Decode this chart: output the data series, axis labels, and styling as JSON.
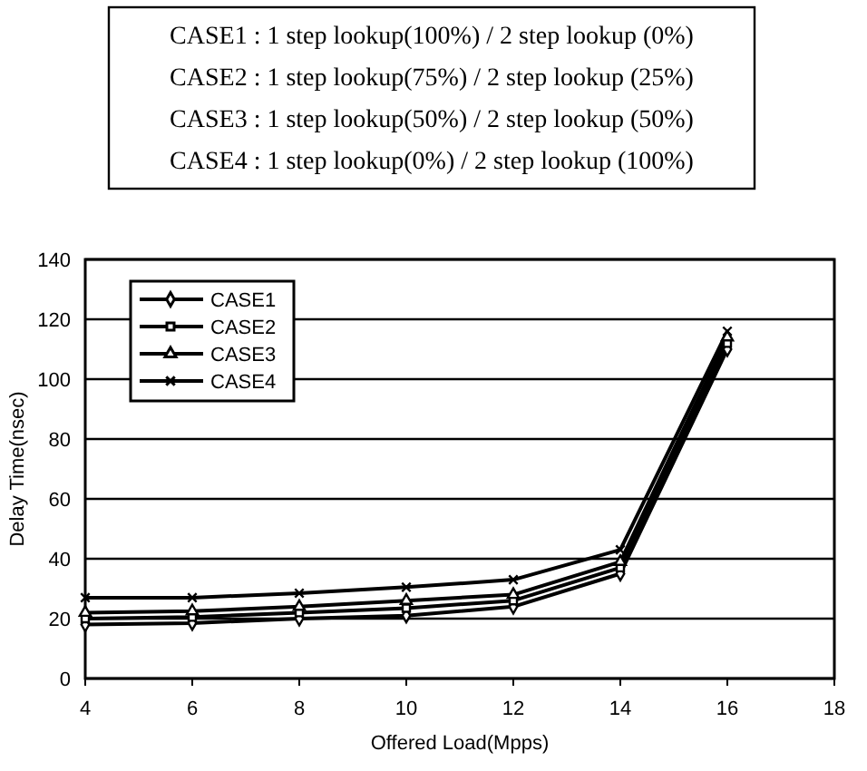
{
  "chart_data": {
    "type": "line",
    "xlabel": "Offered Load(Mpps)",
    "ylabel": "Delay Time(nsec)",
    "annotations": [
      "CASE1 : 1 step lookup(100%) / 2 step lookup (0%)",
      "CASE2 : 1 step lookup(75%) / 2 step lookup (25%)",
      "CASE3 : 1 step lookup(50%) / 2 step lookup (50%)",
      "CASE4 : 1 step lookup(0%) / 2 step lookup (100%)"
    ],
    "x": [
      4,
      6,
      8,
      10,
      12,
      14,
      16
    ],
    "series": [
      {
        "name": "CASE1",
        "color": "#000000",
        "marker": "diamond",
        "values": [
          18,
          18.5,
          20,
          21,
          24,
          35,
          110
        ]
      },
      {
        "name": "CASE2",
        "color": "#000000",
        "marker": "square",
        "values": [
          20,
          20.5,
          22,
          23.5,
          26,
          37,
          112
        ]
      },
      {
        "name": "CASE3",
        "color": "#000000",
        "marker": "triangle",
        "values": [
          22,
          22.5,
          24,
          26,
          28,
          39,
          114
        ]
      },
      {
        "name": "CASE4",
        "color": "#000000",
        "marker": "cross",
        "values": [
          27,
          27,
          28.5,
          30.5,
          33,
          43,
          116
        ]
      }
    ],
    "xlim": [
      4,
      18
    ],
    "xticks": [
      4,
      6,
      8,
      10,
      12,
      14,
      16,
      18
    ],
    "ylim": [
      0,
      140
    ],
    "yticks": [
      0,
      20,
      40,
      60,
      80,
      100,
      120,
      140
    ],
    "grid": "y",
    "legend": "top left"
  }
}
